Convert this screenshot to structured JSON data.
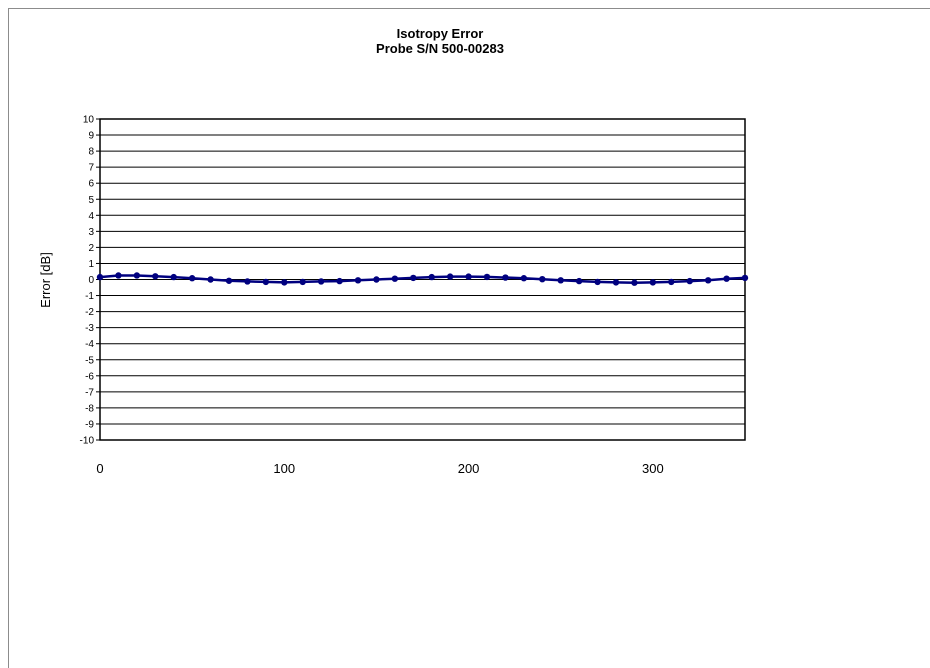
{
  "chart_data": {
    "type": "line",
    "title": "Isotropy Error",
    "subtitle": "Probe S/N 500-00283",
    "xlabel": "",
    "ylabel": "Error [dB]",
    "xlim": [
      0,
      350
    ],
    "ylim": [
      -10,
      10
    ],
    "x_ticks": [
      0,
      100,
      200,
      300
    ],
    "y_ticks": [
      10,
      9,
      8,
      7,
      6,
      5,
      4,
      3,
      2,
      1,
      0,
      -1,
      -2,
      -3,
      -4,
      -5,
      -6,
      -7,
      -8,
      -9,
      -10
    ],
    "grid": "horizontal",
    "legend": "none",
    "line_color": "#00007f",
    "series": [
      {
        "x": [
          0,
          10,
          20,
          30,
          40,
          50,
          60,
          70,
          80,
          90,
          100,
          110,
          120,
          130,
          140,
          150,
          160,
          170,
          180,
          190,
          200,
          210,
          220,
          230,
          240,
          250,
          260,
          270,
          280,
          290,
          300,
          310,
          320,
          330,
          340,
          350
        ],
        "values": [
          0.15,
          0.25,
          0.25,
          0.2,
          0.15,
          0.08,
          0.0,
          -0.08,
          -0.12,
          -0.15,
          -0.18,
          -0.15,
          -0.12,
          -0.1,
          -0.05,
          0.0,
          0.05,
          0.1,
          0.15,
          0.18,
          0.18,
          0.16,
          0.12,
          0.08,
          0.02,
          -0.05,
          -0.1,
          -0.15,
          -0.18,
          -0.2,
          -0.18,
          -0.15,
          -0.1,
          -0.05,
          0.05,
          0.1
        ]
      }
    ]
  }
}
